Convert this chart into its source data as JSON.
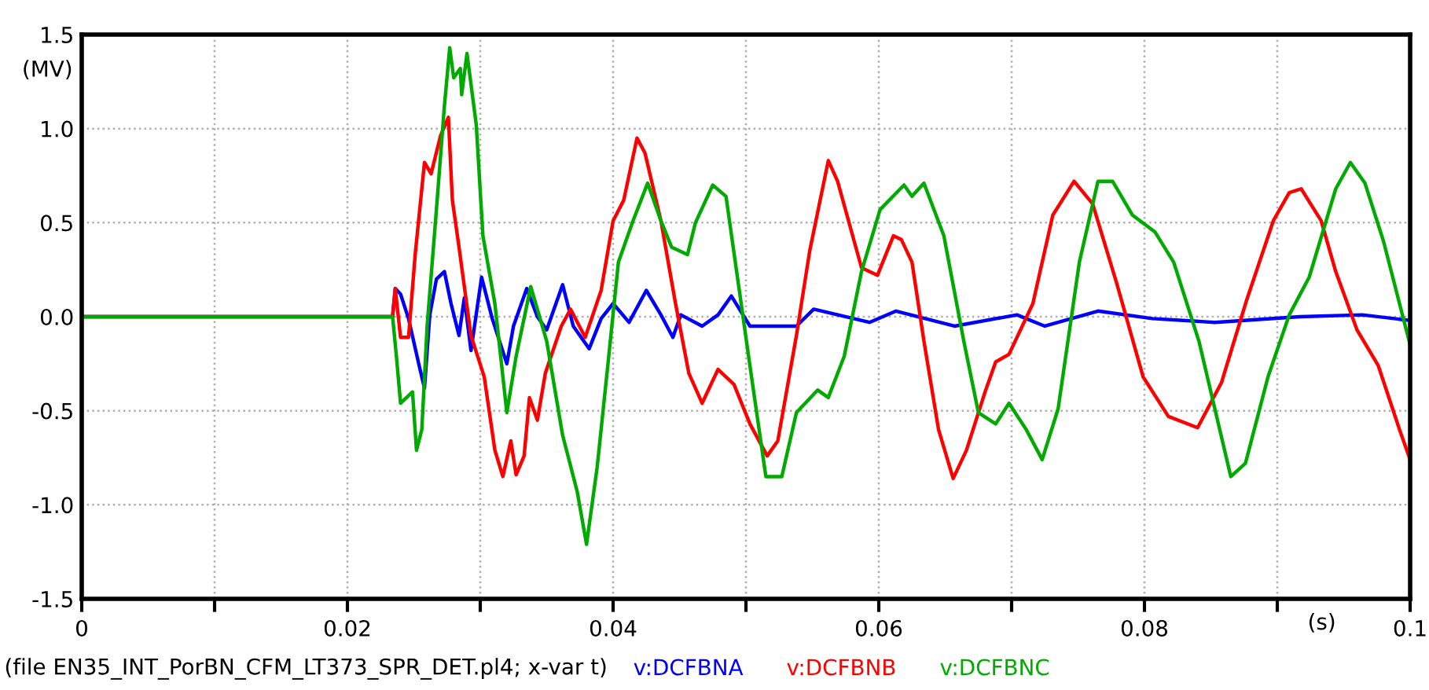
{
  "chart_data": {
    "type": "line",
    "xlabel": "(s)",
    "ylabel": "(MV)",
    "annotations": [
      "(file EN35_INT_PorBN_CFM_LT373_SPR_DET.pl4; x-var t)"
    ],
    "xlim": [
      0,
      0.1
    ],
    "ylim": [
      -1.5,
      1.5
    ],
    "xticks": [
      0,
      {
        "value": 0.01,
        "label": null
      },
      0.02,
      {
        "value": 0.03,
        "label": null
      },
      0.04,
      {
        "value": 0.05,
        "label": null
      },
      0.06,
      {
        "value": 0.07,
        "label": null
      },
      0.08,
      {
        "value": 0.09,
        "label": null
      },
      0.1
    ],
    "yticks": [
      -1.5,
      {
        "value": -1,
        "label": "-1.0"
      },
      -0.5,
      {
        "value": 0,
        "label": "0.0"
      },
      0.5,
      {
        "value": 1,
        "label": "1.0"
      },
      1.5
    ],
    "grid": true,
    "legend": "bottom",
    "line_style": "solid",
    "marker": "none",
    "series": [
      {
        "name": "v:DCFBNA",
        "color": "#0000ff",
        "x": [
          0,
          0.0234,
          0.0236,
          0.024,
          0.0246,
          0.0254,
          0.0258,
          0.0262,
          0.0267,
          0.0273,
          0.0278,
          0.0284,
          0.0288,
          0.0293,
          0.0301,
          0.0309,
          0.032,
          0.0325,
          0.0335,
          0.0343,
          0.035,
          0.0362,
          0.037,
          0.0382,
          0.0391,
          0.04,
          0.0412,
          0.0425,
          0.0436,
          0.0445,
          0.0451,
          0.0467,
          0.0479,
          0.0489,
          0.0503,
          0.0515,
          0.0538,
          0.0551,
          0.0593,
          0.0613,
          0.0657,
          0.0704,
          0.0725,
          0.0765,
          0.0806,
          0.0853,
          0.0917,
          0.0964,
          0.1
        ],
        "values": [
          0,
          0,
          0.15,
          0.12,
          -0.01,
          -0.26,
          -0.38,
          0.01,
          0.2,
          0.24,
          0.07,
          -0.1,
          0.1,
          -0.18,
          0.21,
          -0.01,
          -0.25,
          -0.05,
          0.15,
          0,
          -0.07,
          0.17,
          -0.05,
          -0.17,
          -0.01,
          0.07,
          -0.03,
          0.14,
          0.01,
          -0.11,
          0.01,
          -0.05,
          0.01,
          0.11,
          -0.05,
          -0.05,
          -0.05,
          0.04,
          -0.03,
          0.03,
          -0.05,
          0.01,
          -0.05,
          0.03,
          -0.01,
          -0.03,
          0,
          0.01,
          -0.02
        ]
      },
      {
        "name": "v:DCFBNB",
        "color": "#ff0000",
        "x": [
          0,
          0.0234,
          0.0236,
          0.024,
          0.0246,
          0.0251,
          0.0258,
          0.0263,
          0.027,
          0.0276,
          0.0279,
          0.0284,
          0.0293,
          0.0303,
          0.0311,
          0.0317,
          0.0323,
          0.0327,
          0.0333,
          0.0337,
          0.0343,
          0.0349,
          0.0361,
          0.0368,
          0.0379,
          0.0391,
          0.04,
          0.0408,
          0.0418,
          0.0424,
          0.0436,
          0.0447,
          0.0457,
          0.0467,
          0.0479,
          0.0491,
          0.0503,
          0.0516,
          0.0524,
          0.0538,
          0.0548,
          0.0562,
          0.0569,
          0.0587,
          0.0599,
          0.0611,
          0.0617,
          0.0625,
          0.0634,
          0.0645,
          0.0656,
          0.0666,
          0.068,
          0.0688,
          0.0698,
          0.0716,
          0.0731,
          0.0747,
          0.0761,
          0.0779,
          0.0799,
          0.0818,
          0.084,
          0.0858,
          0.0877,
          0.0897,
          0.0909,
          0.0918,
          0.0933,
          0.0944,
          0.096,
          0.0976,
          0.0992,
          0.1
        ],
        "values": [
          0,
          0,
          0.15,
          -0.11,
          -0.11,
          0.33,
          0.82,
          0.76,
          0.96,
          1.06,
          0.62,
          0.37,
          -0.1,
          -0.32,
          -0.71,
          -0.85,
          -0.66,
          -0.84,
          -0.74,
          -0.43,
          -0.55,
          -0.3,
          -0.05,
          0.04,
          -0.11,
          0.14,
          0.51,
          0.62,
          0.95,
          0.87,
          0.51,
          0.07,
          -0.3,
          -0.46,
          -0.28,
          -0.36,
          -0.57,
          -0.74,
          -0.66,
          -0.1,
          0.35,
          0.83,
          0.72,
          0.26,
          0.22,
          0.43,
          0.41,
          0.29,
          -0.13,
          -0.6,
          -0.86,
          -0.71,
          -0.4,
          -0.24,
          -0.2,
          0.07,
          0.54,
          0.72,
          0.6,
          0.18,
          -0.32,
          -0.53,
          -0.59,
          -0.35,
          0.09,
          0.51,
          0.66,
          0.68,
          0.51,
          0.24,
          -0.07,
          -0.26,
          -0.6,
          -0.76
        ]
      },
      {
        "name": "v:DCFBNC",
        "color": "#00aa00",
        "x": [
          0,
          0.0234,
          0.0237,
          0.024,
          0.0249,
          0.0252,
          0.0256,
          0.026,
          0.0267,
          0.0273,
          0.0277,
          0.028,
          0.0285,
          0.0286,
          0.029,
          0.0297,
          0.0302,
          0.0311,
          0.032,
          0.0327,
          0.0338,
          0.035,
          0.0362,
          0.0373,
          0.038,
          0.0388,
          0.0396,
          0.0404,
          0.0415,
          0.0426,
          0.0436,
          0.0444,
          0.0456,
          0.0462,
          0.0475,
          0.0485,
          0.0492,
          0.0503,
          0.0515,
          0.0527,
          0.0538,
          0.0554,
          0.0562,
          0.0574,
          0.0587,
          0.0601,
          0.0619,
          0.0625,
          0.0634,
          0.0649,
          0.0664,
          0.0675,
          0.0688,
          0.0698,
          0.0711,
          0.0723,
          0.0735,
          0.0751,
          0.0765,
          0.0776,
          0.0791,
          0.0808,
          0.0822,
          0.0841,
          0.0865,
          0.0876,
          0.0893,
          0.0909,
          0.0924,
          0.0944,
          0.0955,
          0.0966,
          0.098,
          0.0992,
          0.1
        ],
        "values": [
          0,
          0,
          -0.22,
          -0.46,
          -0.4,
          -0.71,
          -0.6,
          -0.05,
          0.57,
          1.12,
          1.43,
          1.27,
          1.32,
          1.18,
          1.4,
          1.02,
          0.43,
          0.07,
          -0.51,
          -0.21,
          0.16,
          -0.13,
          -0.63,
          -0.93,
          -1.21,
          -0.8,
          -0.26,
          0.29,
          0.51,
          0.71,
          0.51,
          0.37,
          0.33,
          0.5,
          0.7,
          0.64,
          0.29,
          -0.26,
          -0.85,
          -0.85,
          -0.51,
          -0.39,
          -0.43,
          -0.21,
          0.24,
          0.57,
          0.7,
          0.64,
          0.71,
          0.43,
          -0.13,
          -0.51,
          -0.57,
          -0.46,
          -0.6,
          -0.76,
          -0.49,
          0.29,
          0.72,
          0.72,
          0.54,
          0.45,
          0.29,
          -0.13,
          -0.85,
          -0.78,
          -0.32,
          0.01,
          0.21,
          0.68,
          0.82,
          0.71,
          0.4,
          0.07,
          -0.15
        ]
      }
    ]
  }
}
